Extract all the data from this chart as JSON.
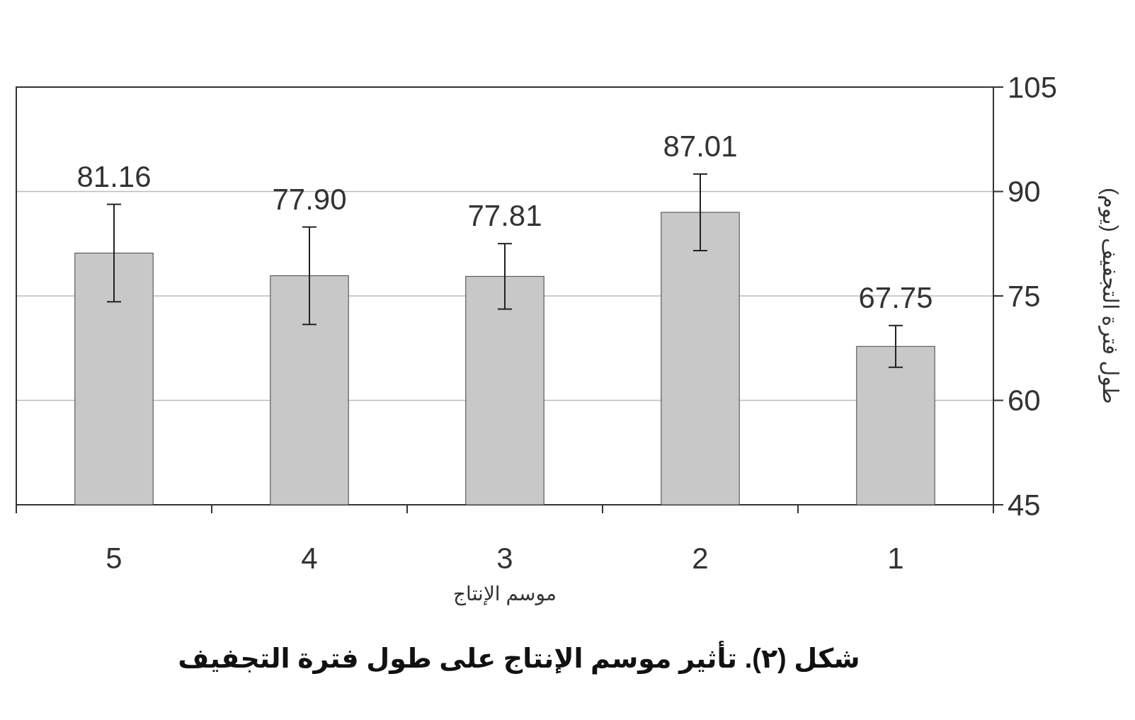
{
  "chart_data": {
    "type": "bar",
    "title": "شكل (٢). تأثير موسم الإنتاج على طول فترة التجفيف",
    "xlabel": "موسم الإنتاج",
    "ylabel": "طول فترة التجفيف (يوم)",
    "categories": [
      "5",
      "4",
      "3",
      "2",
      "1"
    ],
    "values": [
      81.16,
      77.9,
      77.81,
      87.01,
      67.75
    ],
    "value_labels": [
      "81.16",
      "77.90",
      "77.81",
      "87.01",
      "67.75"
    ],
    "errors": [
      7,
      7,
      4.7,
      5.5,
      3
    ],
    "color": "#c8c8c8",
    "ylim": [
      45,
      105
    ],
    "yticks": [
      45,
      60,
      75,
      90,
      105
    ],
    "grid": "y"
  }
}
